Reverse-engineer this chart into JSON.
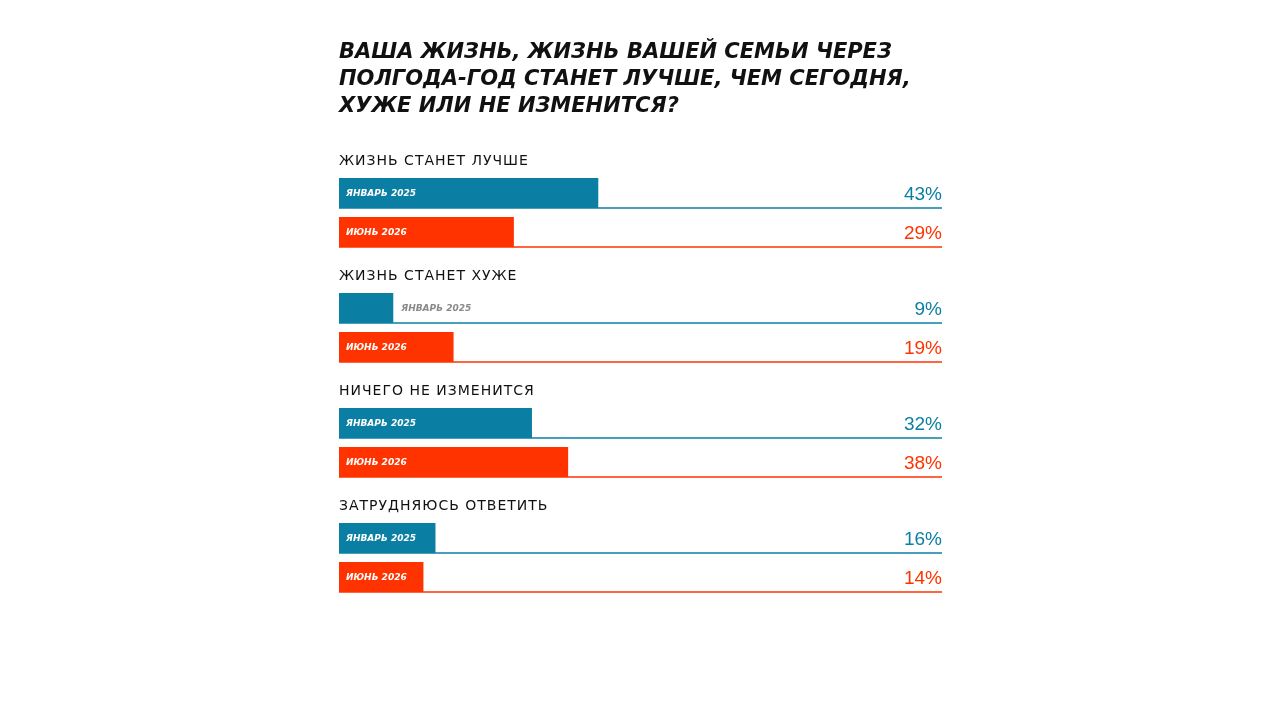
{
  "chart_data": {
    "type": "bar",
    "orientation": "horizontal",
    "title": "ВАША ЖИЗНЬ, ЖИЗНЬ ВАШЕЙ СЕМЬИ ЧЕРЕЗ ПОЛГОДА-ГОД СТАНЕТ ЛУЧШЕ, ЧЕМ СЕГОДНЯ, ХУЖЕ ИЛИ НЕ ИЗМЕНИТСЯ?",
    "categories": [
      "ЖИЗНЬ СТАНЕТ ЛУЧШЕ",
      "ЖИЗНЬ СТАНЕТ ХУЖЕ",
      "НИЧЕГО НЕ ИЗМЕНИТСЯ",
      "ЗАТРУДНЯЮСЬ ОТВЕТИТЬ"
    ],
    "series": [
      {
        "name": "ЯНВАРЬ 2025",
        "color": "#0a7fa3",
        "values": [
          43,
          9,
          32,
          16
        ],
        "value_labels": [
          "43%",
          "9%",
          "32%",
          "16%"
        ]
      },
      {
        "name": "ИЮНЬ 2026",
        "color": "#ff3300",
        "values": [
          29,
          19,
          38,
          14
        ],
        "value_labels": [
          "29%",
          "19%",
          "38%",
          "14%"
        ]
      }
    ],
    "xlim": [
      0,
      100
    ],
    "grid": "y",
    "legend": false
  }
}
